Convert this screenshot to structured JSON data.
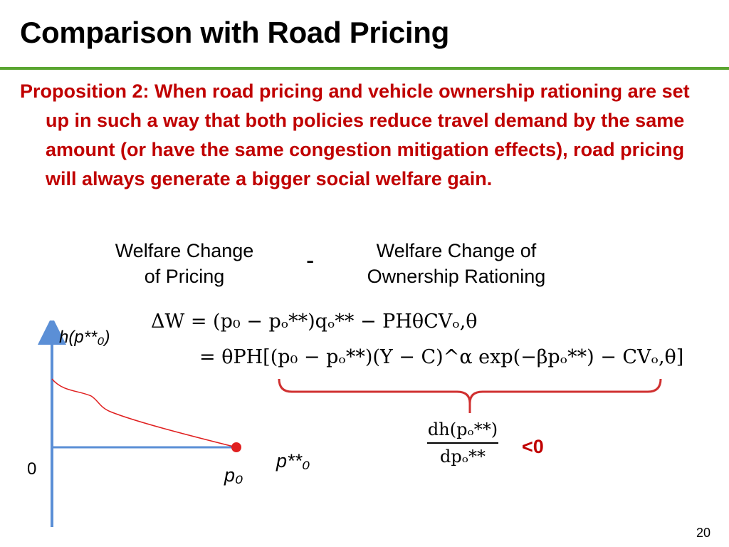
{
  "slide": {
    "title": "Comparison with Road Pricing",
    "proposition": "Proposition 2: When road pricing and vehicle ownership rationing are set up in such a way that both policies reduce travel demand by the same amount (or have the same congestion mitigation effects), road pricing will always generate a bigger social welfare gain.",
    "left_label": [
      "Welfare Change",
      "of Pricing"
    ],
    "minus": "-",
    "right_label": [
      "Welfare Change of",
      "Ownership Rationing"
    ],
    "eq_line1": "ΔW = (p₀ − pₒ**)qₒ** − PHθCVₒ,θ",
    "eq_line2": "= θPH[(p₀ − pₒ**)(Y − C)^α exp(−βpₒ**) − CVₒ,θ]",
    "fraction_num": "dh(pₒ**)",
    "fraction_den": "dpₒ**",
    "less_than_zero": "<0",
    "page_number": "20"
  },
  "graph": {
    "y_label": "h(p**₀)",
    "x_label": "p**₀",
    "origin_label": "0",
    "p0_label": "p₀",
    "axis_color": "#5b8fd6",
    "curve_color": "#e02020",
    "point_color": "#e02020"
  },
  "colors": {
    "accent_red": "#c00000",
    "rule_green": "#5aa531",
    "brace_red": "#d03030"
  }
}
